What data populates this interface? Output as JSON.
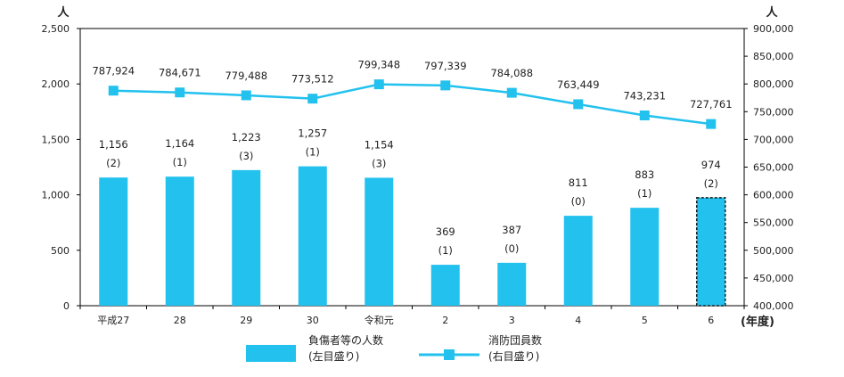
{
  "chart_data": {
    "type": "bar",
    "categories": [
      "平成27",
      "28",
      "29",
      "30",
      "令和元",
      "2",
      "3",
      "4",
      "5",
      "6"
    ],
    "x_unit": "(年度)",
    "series": [
      {
        "name": "負傷者等の人数",
        "axis_note": "(左目盛り)",
        "type": "bar",
        "axis": "left",
        "values": [
          1156,
          1164,
          1223,
          1257,
          1154,
          369,
          387,
          811,
          883,
          974
        ],
        "value_labels": [
          "1,156",
          "1,164",
          "1,223",
          "1,257",
          "1,154",
          "369",
          "387",
          "811",
          "883",
          "974"
        ],
        "sub_labels": [
          "(2)",
          "(1)",
          "(3)",
          "(1)",
          "(3)",
          "(1)",
          "(0)",
          "(0)",
          "(1)",
          "(2)"
        ],
        "color": "#22c1ee",
        "highlight_last": true
      },
      {
        "name": "消防団員数",
        "axis_note": "(右目盛り)",
        "type": "line",
        "axis": "right",
        "values": [
          787924,
          784671,
          779488,
          773512,
          799348,
          797339,
          784088,
          763449,
          743231,
          727761
        ],
        "value_labels": [
          "787,924",
          "784,671",
          "779,488",
          "773,512",
          "799,348",
          "797,339",
          "784,088",
          "763,449",
          "743,231",
          "727,761"
        ],
        "color": "#22c1ee"
      }
    ],
    "y_left": {
      "unit": "人",
      "range": [
        0,
        2500
      ],
      "ticks": [
        0,
        500,
        1000,
        1500,
        2000,
        2500
      ],
      "tick_labels": [
        "0",
        "500",
        "1,000",
        "1,500",
        "2,000",
        "2,500"
      ]
    },
    "y_right": {
      "unit": "人",
      "range": [
        400000,
        900000
      ],
      "ticks": [
        400000,
        450000,
        500000,
        550000,
        600000,
        650000,
        700000,
        750000,
        800000,
        850000,
        900000
      ],
      "tick_labels": [
        "400,000",
        "450,000",
        "500,000",
        "550,000",
        "600,000",
        "650,000",
        "700,000",
        "750,000",
        "800,000",
        "850,000",
        "900,000"
      ]
    },
    "grid": false,
    "legend_position": "bottom"
  }
}
